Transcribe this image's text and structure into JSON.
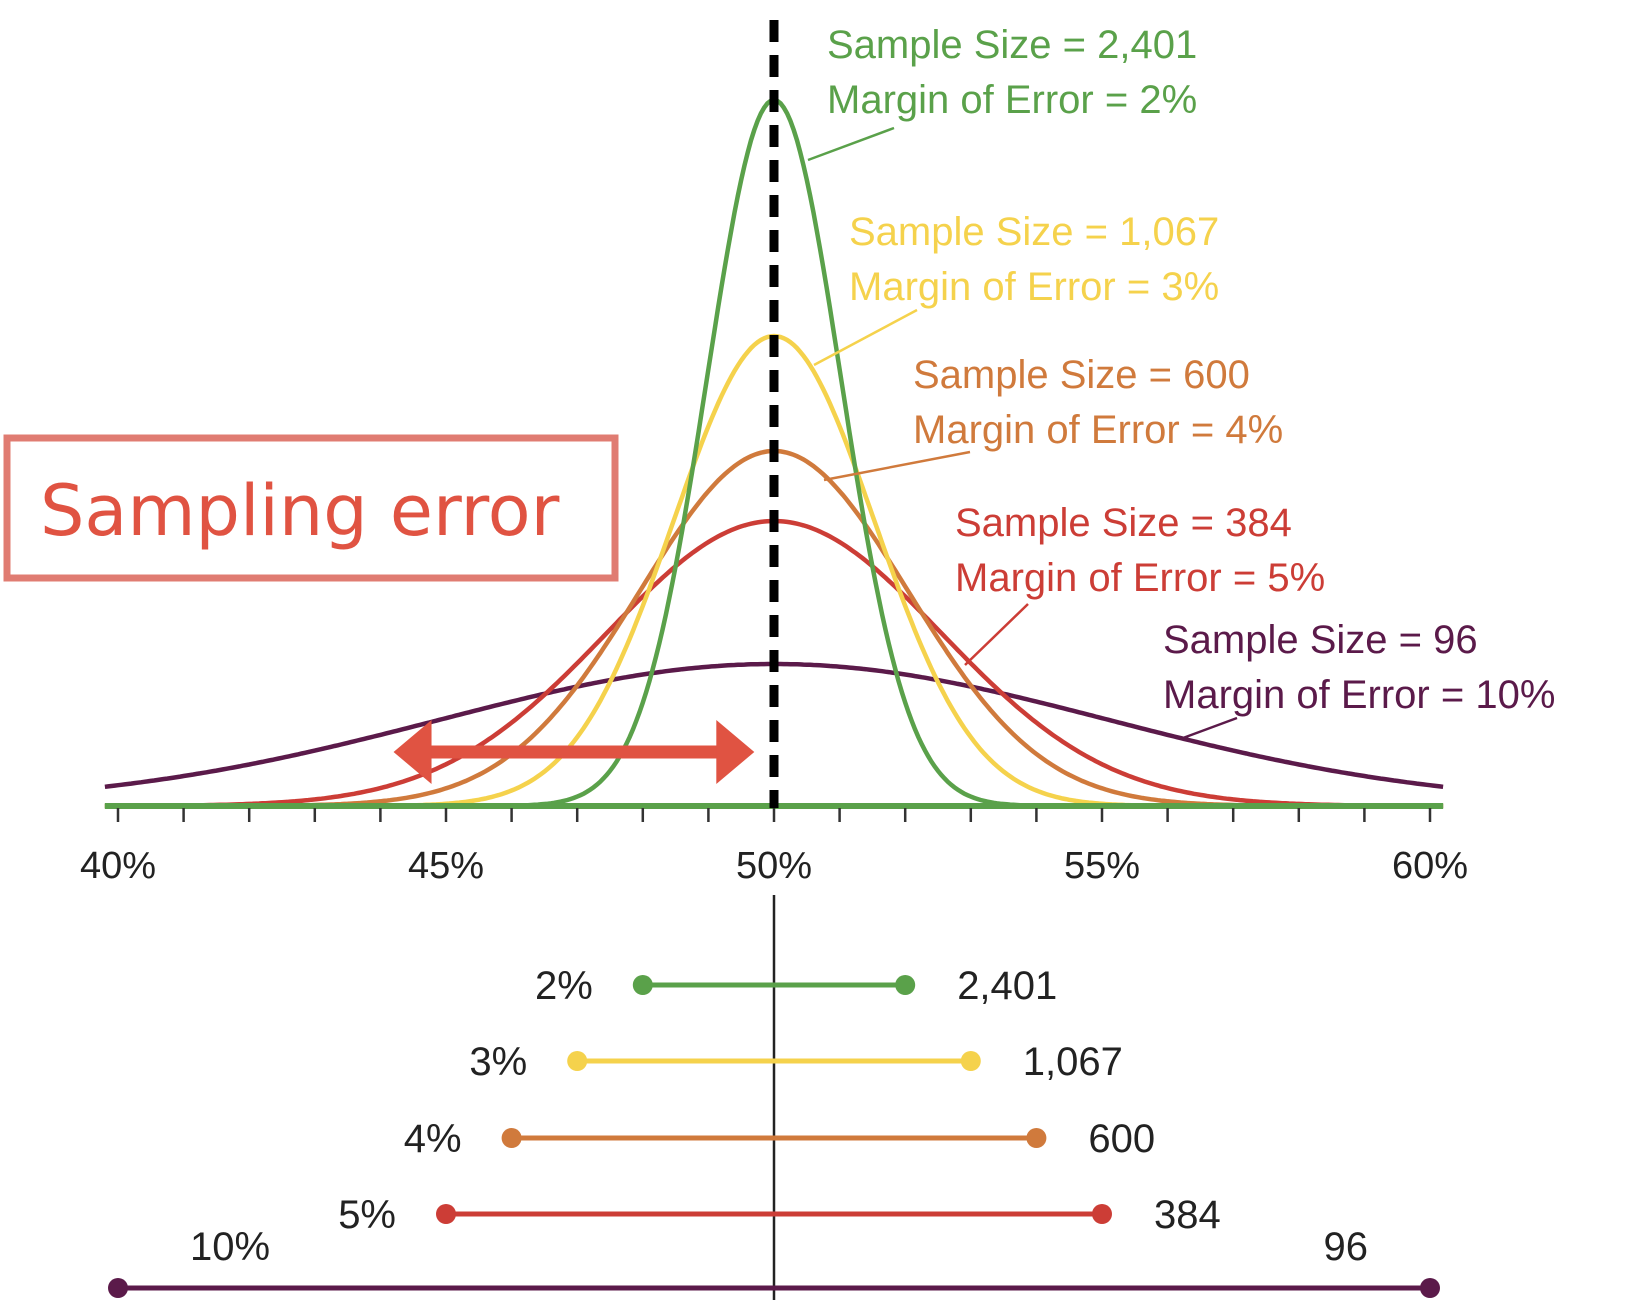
{
  "callout": {
    "text": "Sampling error",
    "color": "#e05342"
  },
  "chart_data": {
    "type": "line",
    "x_ticks": [
      "40%",
      "45%",
      "50%",
      "55%",
      "60%"
    ],
    "xlim": [
      40,
      60
    ],
    "center": 50,
    "series": [
      {
        "name": "Sample Size = 2,401",
        "caption": "Margin of Error = 2%",
        "sample_size": "2,401",
        "margin": "2%",
        "margin_value": 2,
        "color": "#5aa14a"
      },
      {
        "name": "Sample Size = 1,067",
        "caption": "Margin of Error = 3%",
        "sample_size": "1,067",
        "margin": "3%",
        "margin_value": 3,
        "color": "#f5d24c"
      },
      {
        "name": "Sample Size = 600",
        "caption": "Margin of Error = 4%",
        "sample_size": "600",
        "margin": "4%",
        "margin_value": 4,
        "color": "#d07a3c"
      },
      {
        "name": "Sample Size = 384",
        "caption": "Margin of Error = 5%",
        "sample_size": "384",
        "margin": "5%",
        "margin_value": 5,
        "color": "#cc3d36"
      },
      {
        "name": "Sample Size = 96",
        "caption": "Margin of Error = 10%",
        "sample_size": "96",
        "margin": "10%",
        "margin_value": 10,
        "color": "#5b1a4a"
      }
    ]
  }
}
